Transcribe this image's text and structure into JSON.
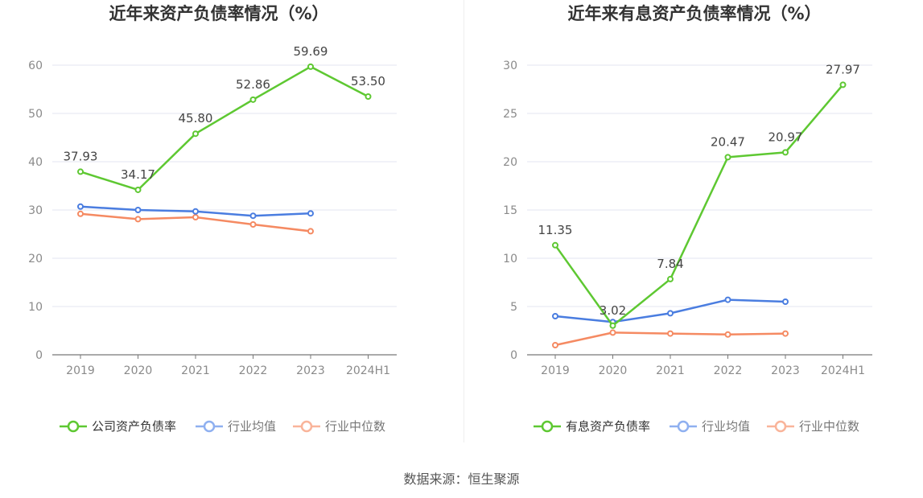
{
  "source": "数据来源：恒生聚源",
  "chart_data": [
    {
      "type": "line",
      "title": "近年来资产负债率情况（%）",
      "categories": [
        "2019",
        "2020",
        "2021",
        "2022",
        "2023",
        "2024H1"
      ],
      "ylim": [
        0,
        60
      ],
      "yticks": [
        0,
        10,
        20,
        30,
        40,
        50,
        60
      ],
      "grid": true,
      "legend_position": "bottom",
      "series": [
        {
          "name": "公司资产负债率",
          "color": "#5ec832",
          "values": [
            37.93,
            34.17,
            45.8,
            52.86,
            59.69,
            53.5
          ],
          "labels": [
            "37.93",
            "34.17",
            "45.80",
            "52.86",
            "59.69",
            "53.50"
          ]
        },
        {
          "name": "行业均值",
          "color": "#4a7de0",
          "values": [
            30.7,
            30.0,
            29.7,
            28.8,
            29.3,
            null
          ]
        },
        {
          "name": "行业中位数",
          "color": "#f58a62",
          "values": [
            29.2,
            28.1,
            28.5,
            27.0,
            25.6,
            null
          ]
        }
      ]
    },
    {
      "type": "line",
      "title": "近年来有息资产负债率情况（%）",
      "categories": [
        "2019",
        "2020",
        "2021",
        "2022",
        "2023",
        "2024H1"
      ],
      "ylim": [
        0,
        30
      ],
      "yticks": [
        0,
        5,
        10,
        15,
        20,
        25,
        30
      ],
      "grid": true,
      "legend_position": "bottom",
      "series": [
        {
          "name": "有息资产负债率",
          "color": "#5ec832",
          "values": [
            11.35,
            3.02,
            7.84,
            20.47,
            20.97,
            27.97
          ],
          "labels": [
            "11.35",
            "3.02",
            "7.84",
            "20.47",
            "20.97",
            "27.97"
          ]
        },
        {
          "name": "行业均值",
          "color": "#4a7de0",
          "values": [
            4.0,
            3.4,
            4.3,
            5.7,
            5.5,
            null
          ]
        },
        {
          "name": "行业中位数",
          "color": "#f58a62",
          "values": [
            1.0,
            2.3,
            2.2,
            2.1,
            2.2,
            null
          ]
        }
      ]
    }
  ]
}
